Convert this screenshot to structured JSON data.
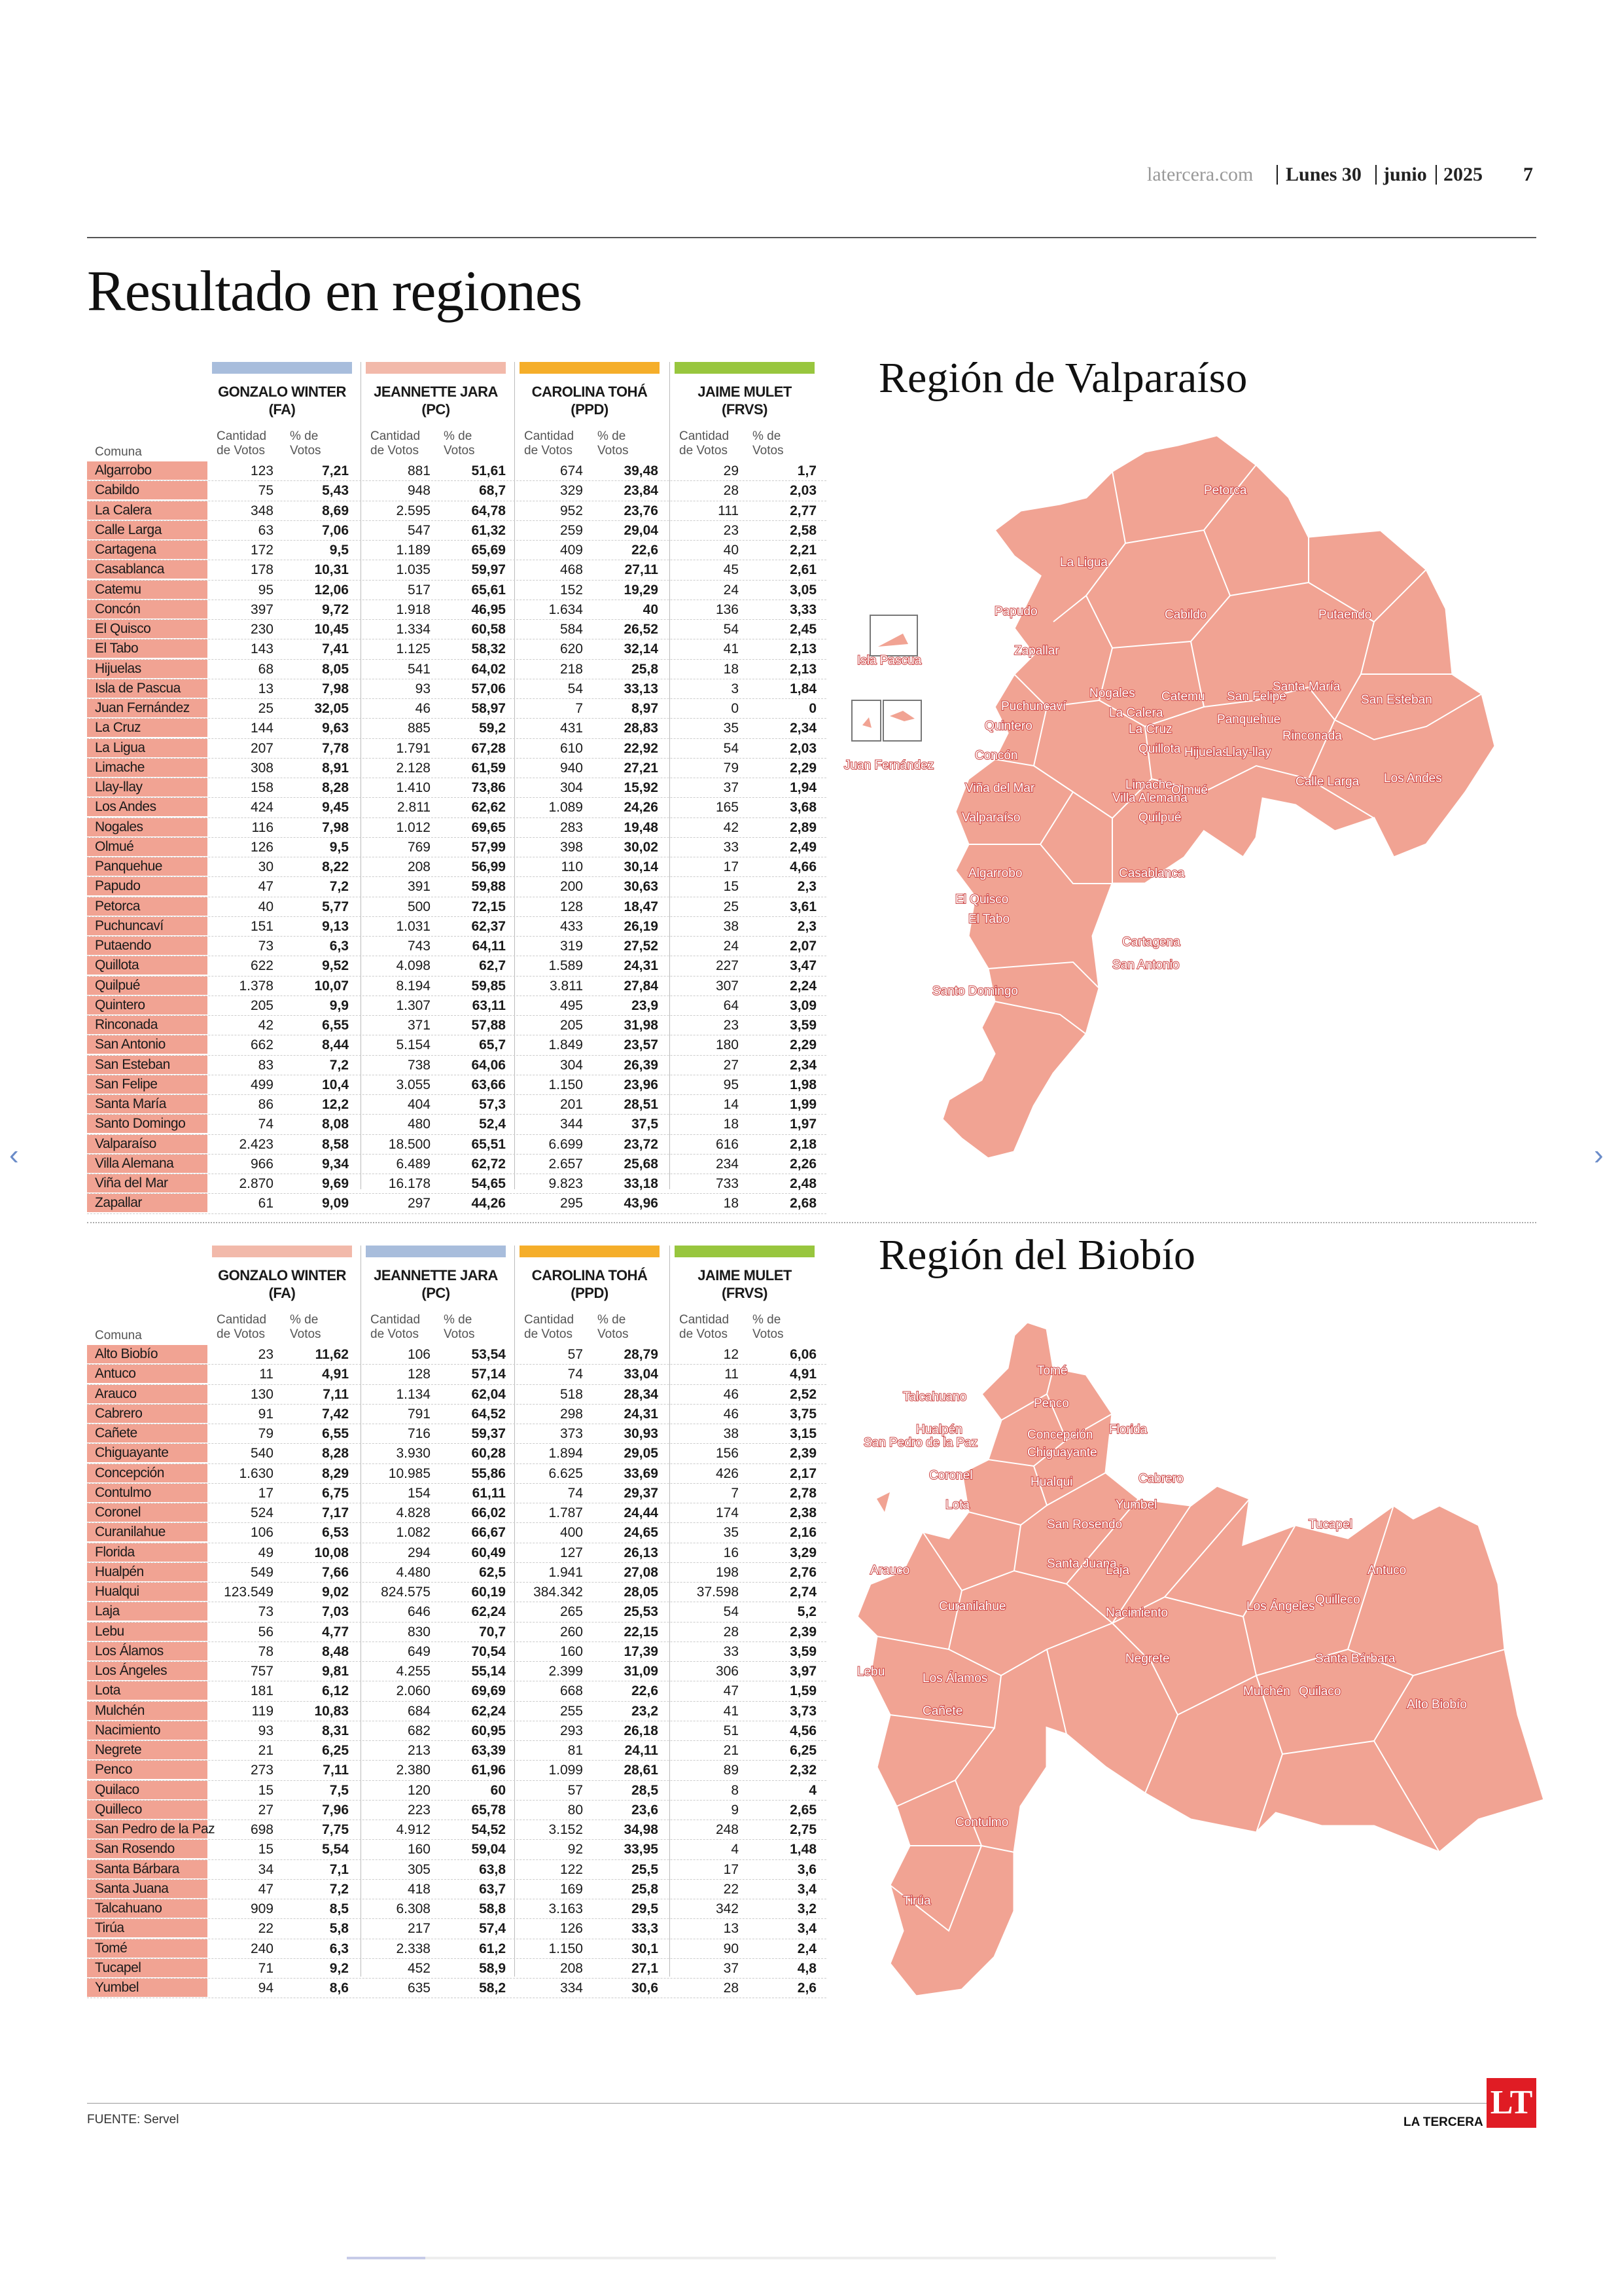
{
  "header": {
    "site": "latercera.com",
    "day": "Lunes 30",
    "month": "junio",
    "year": "2025",
    "page_number": "7"
  },
  "title": "Resultado en regiones",
  "column_labels": {
    "comuna": "Comuna",
    "cantidad_1": "Cantidad",
    "cantidad_2": "de Votos",
    "pct_1": "% de",
    "pct_2": "Votos"
  },
  "colors": {
    "region_fill": "#f1a393",
    "blue": "#a8bddc",
    "pink": "#f2b9aa",
    "orange": "#f5ae2a",
    "green": "#98c63e"
  },
  "valparaiso": {
    "map_title": "Región de Valparaíso",
    "candidates": [
      {
        "name": "GONZALO WINTER",
        "party": "(FA)",
        "color": "#a8bddc"
      },
      {
        "name": "JEANNETTE JARA",
        "party": "(PC)",
        "color": "#f2b9aa"
      },
      {
        "name": "CAROLINA TOHÁ",
        "party": "(PPD)",
        "color": "#f5ae2a"
      },
      {
        "name": "JAIME MULET",
        "party": "(FRVS)",
        "color": "#98c63e"
      }
    ],
    "rows": [
      [
        "Algarrobo",
        "123",
        "7,21",
        "881",
        "51,61",
        "674",
        "39,48",
        "29",
        "1,7"
      ],
      [
        "Cabildo",
        "75",
        "5,43",
        "948",
        "68,7",
        "329",
        "23,84",
        "28",
        "2,03"
      ],
      [
        "La Calera",
        "348",
        "8,69",
        "2.595",
        "64,78",
        "952",
        "23,76",
        "111",
        "2,77"
      ],
      [
        "Calle Larga",
        "63",
        "7,06",
        "547",
        "61,32",
        "259",
        "29,04",
        "23",
        "2,58"
      ],
      [
        "Cartagena",
        "172",
        "9,5",
        "1.189",
        "65,69",
        "409",
        "22,6",
        "40",
        "2,21"
      ],
      [
        "Casablanca",
        "178",
        "10,31",
        "1.035",
        "59,97",
        "468",
        "27,11",
        "45",
        "2,61"
      ],
      [
        "Catemu",
        "95",
        "12,06",
        "517",
        "65,61",
        "152",
        "19,29",
        "24",
        "3,05"
      ],
      [
        "Concón",
        "397",
        "9,72",
        "1.918",
        "46,95",
        "1.634",
        "40",
        "136",
        "3,33"
      ],
      [
        "El Quisco",
        "230",
        "10,45",
        "1.334",
        "60,58",
        "584",
        "26,52",
        "54",
        "2,45"
      ],
      [
        "El Tabo",
        "143",
        "7,41",
        "1.125",
        "58,32",
        "620",
        "32,14",
        "41",
        "2,13"
      ],
      [
        "Hijuelas",
        "68",
        "8,05",
        "541",
        "64,02",
        "218",
        "25,8",
        "18",
        "2,13"
      ],
      [
        "Isla de Pascua",
        "13",
        "7,98",
        "93",
        "57,06",
        "54",
        "33,13",
        "3",
        "1,84"
      ],
      [
        "Juan Fernández",
        "25",
        "32,05",
        "46",
        "58,97",
        "7",
        "8,97",
        "0",
        "0"
      ],
      [
        "La Cruz",
        "144",
        "9,63",
        "885",
        "59,2",
        "431",
        "28,83",
        "35",
        "2,34"
      ],
      [
        "La Ligua",
        "207",
        "7,78",
        "1.791",
        "67,28",
        "610",
        "22,92",
        "54",
        "2,03"
      ],
      [
        "Limache",
        "308",
        "8,91",
        "2.128",
        "61,59",
        "940",
        "27,21",
        "79",
        "2,29"
      ],
      [
        "Llay-llay",
        "158",
        "8,28",
        "1.410",
        "73,86",
        "304",
        "15,92",
        "37",
        "1,94"
      ],
      [
        "Los Andes",
        "424",
        "9,45",
        "2.811",
        "62,62",
        "1.089",
        "24,26",
        "165",
        "3,68"
      ],
      [
        "Nogales",
        "116",
        "7,98",
        "1.012",
        "69,65",
        "283",
        "19,48",
        "42",
        "2,89"
      ],
      [
        "Olmué",
        "126",
        "9,5",
        "769",
        "57,99",
        "398",
        "30,02",
        "33",
        "2,49"
      ],
      [
        "Panquehue",
        "30",
        "8,22",
        "208",
        "56,99",
        "110",
        "30,14",
        "17",
        "4,66"
      ],
      [
        "Papudo",
        "47",
        "7,2",
        "391",
        "59,88",
        "200",
        "30,63",
        "15",
        "2,3"
      ],
      [
        "Petorca",
        "40",
        "5,77",
        "500",
        "72,15",
        "128",
        "18,47",
        "25",
        "3,61"
      ],
      [
        "Puchuncaví",
        "151",
        "9,13",
        "1.031",
        "62,37",
        "433",
        "26,19",
        "38",
        "2,3"
      ],
      [
        "Putaendo",
        "73",
        "6,3",
        "743",
        "64,11",
        "319",
        "27,52",
        "24",
        "2,07"
      ],
      [
        "Quillota",
        "622",
        "9,52",
        "4.098",
        "62,7",
        "1.589",
        "24,31",
        "227",
        "3,47"
      ],
      [
        "Quilpué",
        "1.378",
        "10,07",
        "8.194",
        "59,85",
        "3.811",
        "27,84",
        "307",
        "2,24"
      ],
      [
        "Quintero",
        "205",
        "9,9",
        "1.307",
        "63,11",
        "495",
        "23,9",
        "64",
        "3,09"
      ],
      [
        "Rinconada",
        "42",
        "6,55",
        "371",
        "57,88",
        "205",
        "31,98",
        "23",
        "3,59"
      ],
      [
        "San Antonio",
        "662",
        "8,44",
        "5.154",
        "65,7",
        "1.849",
        "23,57",
        "180",
        "2,29"
      ],
      [
        "San Esteban",
        "83",
        "7,2",
        "738",
        "64,06",
        "304",
        "26,39",
        "27",
        "2,34"
      ],
      [
        "San Felipe",
        "499",
        "10,4",
        "3.055",
        "63,66",
        "1.150",
        "23,96",
        "95",
        "1,98"
      ],
      [
        "Santa María",
        "86",
        "12,2",
        "404",
        "57,3",
        "201",
        "28,51",
        "14",
        "1,99"
      ],
      [
        "Santo Domingo",
        "74",
        "8,08",
        "480",
        "52,4",
        "344",
        "37,5",
        "18",
        "1,97"
      ],
      [
        "Valparaíso",
        "2.423",
        "8,58",
        "18.500",
        "65,51",
        "6.699",
        "23,72",
        "616",
        "2,18"
      ],
      [
        "Villa Alemana",
        "966",
        "9,34",
        "6.489",
        "62,72",
        "2.657",
        "25,68",
        "234",
        "2,26"
      ],
      [
        "Viña del Mar",
        "2.870",
        "9,69",
        "16.178",
        "54,65",
        "9.823",
        "33,18",
        "733",
        "2,48"
      ],
      [
        "Zapallar",
        "61",
        "9,09",
        "297",
        "44,26",
        "295",
        "43,96",
        "18",
        "2,68"
      ]
    ],
    "map_labels": [
      "Petorca",
      "La Ligua",
      "Papudo",
      "Cabildo",
      "Putaendo",
      "Zapallar",
      "Santa María",
      "Nogales",
      "Catemu",
      "San Felipe",
      "San Esteban",
      "Puchuncaví",
      "La Calera",
      "Panquehue",
      "Quintero",
      "La Cruz",
      "Quillota",
      "Hijuelas",
      "Llay-llay",
      "Rinconada",
      "Concón",
      "Calle Larga",
      "Los Andes",
      "Viña del Mar",
      "Limache",
      "Olmué",
      "Villa Alemana",
      "Valparaíso",
      "Quilpué",
      "Algarrobo",
      "Casablanca",
      "El Quisco",
      "El Tabo",
      "Cartagena",
      "San Antonio",
      "Santo Domingo",
      "Isla Pascua",
      "Juan Fernández"
    ]
  },
  "biobio": {
    "map_title": "Región del Biobío",
    "candidates": [
      {
        "name": "GONZALO WINTER",
        "party": "(FA)",
        "color": "#f2b9aa"
      },
      {
        "name": "JEANNETTE JARA",
        "party": "(PC)",
        "color": "#a8bddc"
      },
      {
        "name": "CAROLINA TOHÁ",
        "party": "(PPD)",
        "color": "#f5ae2a"
      },
      {
        "name": "JAIME MULET",
        "party": "(FRVS)",
        "color": "#98c63e"
      }
    ],
    "rows": [
      [
        "Alto Biobío",
        "23",
        "11,62",
        "106",
        "53,54",
        "57",
        "28,79",
        "12",
        "6,06"
      ],
      [
        "Antuco",
        "11",
        "4,91",
        "128",
        "57,14",
        "74",
        "33,04",
        "11",
        "4,91"
      ],
      [
        "Arauco",
        "130",
        "7,11",
        "1.134",
        "62,04",
        "518",
        "28,34",
        "46",
        "2,52"
      ],
      [
        "Cabrero",
        "91",
        "7,42",
        "791",
        "64,52",
        "298",
        "24,31",
        "46",
        "3,75"
      ],
      [
        "Cañete",
        "79",
        "6,55",
        "716",
        "59,37",
        "373",
        "30,93",
        "38",
        "3,15"
      ],
      [
        "Chiguayante",
        "540",
        "8,28",
        "3.930",
        "60,28",
        "1.894",
        "29,05",
        "156",
        "2,39"
      ],
      [
        "Concepción",
        "1.630",
        "8,29",
        "10.985",
        "55,86",
        "6.625",
        "33,69",
        "426",
        "2,17"
      ],
      [
        "Contulmo",
        "17",
        "6,75",
        "154",
        "61,11",
        "74",
        "29,37",
        "7",
        "2,78"
      ],
      [
        "Coronel",
        "524",
        "7,17",
        "4.828",
        "66,02",
        "1.787",
        "24,44",
        "174",
        "2,38"
      ],
      [
        "Curanilahue",
        "106",
        "6,53",
        "1.082",
        "66,67",
        "400",
        "24,65",
        "35",
        "2,16"
      ],
      [
        "Florida",
        "49",
        "10,08",
        "294",
        "60,49",
        "127",
        "26,13",
        "16",
        "3,29"
      ],
      [
        "Hualpén",
        "549",
        "7,66",
        "4.480",
        "62,5",
        "1.941",
        "27,08",
        "198",
        "2,76"
      ],
      [
        "Hualqui",
        "123.549",
        "9,02",
        "824.575",
        "60,19",
        "384.342",
        "28,05",
        "37.598",
        "2,74"
      ],
      [
        "Laja",
        "73",
        "7,03",
        "646",
        "62,24",
        "265",
        "25,53",
        "54",
        "5,2"
      ],
      [
        "Lebu",
        "56",
        "4,77",
        "830",
        "70,7",
        "260",
        "22,15",
        "28",
        "2,39"
      ],
      [
        "Los Álamos",
        "78",
        "8,48",
        "649",
        "70,54",
        "160",
        "17,39",
        "33",
        "3,59"
      ],
      [
        "Los Ángeles",
        "757",
        "9,81",
        "4.255",
        "55,14",
        "2.399",
        "31,09",
        "306",
        "3,97"
      ],
      [
        "Lota",
        "181",
        "6,12",
        "2.060",
        "69,69",
        "668",
        "22,6",
        "47",
        "1,59"
      ],
      [
        "Mulchén",
        "119",
        "10,83",
        "684",
        "62,24",
        "255",
        "23,2",
        "41",
        "3,73"
      ],
      [
        "Nacimiento",
        "93",
        "8,31",
        "682",
        "60,95",
        "293",
        "26,18",
        "51",
        "4,56"
      ],
      [
        "Negrete",
        "21",
        "6,25",
        "213",
        "63,39",
        "81",
        "24,11",
        "21",
        "6,25"
      ],
      [
        "Penco",
        "273",
        "7,11",
        "2.380",
        "61,96",
        "1.099",
        "28,61",
        "89",
        "2,32"
      ],
      [
        "Quilaco",
        "15",
        "7,5",
        "120",
        "60",
        "57",
        "28,5",
        "8",
        "4"
      ],
      [
        "Quilleco",
        "27",
        "7,96",
        "223",
        "65,78",
        "80",
        "23,6",
        "9",
        "2,65"
      ],
      [
        "San Pedro de la Paz",
        "698",
        "7,75",
        "4.912",
        "54,52",
        "3.152",
        "34,98",
        "248",
        "2,75"
      ],
      [
        "San Rosendo",
        "15",
        "5,54",
        "160",
        "59,04",
        "92",
        "33,95",
        "4",
        "1,48"
      ],
      [
        "Santa Bárbara",
        "34",
        "7,1",
        "305",
        "63,8",
        "122",
        "25,5",
        "17",
        "3,6"
      ],
      [
        "Santa Juana",
        "47",
        "7,2",
        "418",
        "63,7",
        "169",
        "25,8",
        "22",
        "3,4"
      ],
      [
        "Talcahuano",
        "909",
        "8,5",
        "6.308",
        "58,8",
        "3.163",
        "29,5",
        "342",
        "3,2"
      ],
      [
        "Tirúa",
        "22",
        "5,8",
        "217",
        "57,4",
        "126",
        "33,3",
        "13",
        "3,4"
      ],
      [
        "Tomé",
        "240",
        "6,3",
        "2.338",
        "61,2",
        "1.150",
        "30,1",
        "90",
        "2,4"
      ],
      [
        "Tucapel",
        "71",
        "9,2",
        "452",
        "58,9",
        "208",
        "27,1",
        "37",
        "4,8"
      ],
      [
        "Yumbel",
        "94",
        "8,6",
        "635",
        "58,2",
        "334",
        "30,6",
        "28",
        "2,6"
      ]
    ],
    "map_labels": [
      "Tomé",
      "Talcahuano",
      "Penco",
      "Hualpén",
      "Concepción",
      "Florida",
      "San Pedro de la Paz",
      "Chiguayante",
      "Coronel",
      "Hualqui",
      "Cabrero",
      "Lota",
      "Yumbel",
      "San Rosendo",
      "Tucapel",
      "Arauco",
      "Santa Juana",
      "Laja",
      "Antuco",
      "Curanilahue",
      "Nacimiento",
      "Los Ángeles",
      "Quilleco",
      "Negrete",
      "Santa Bárbara",
      "Lebu",
      "Los Álamos",
      "Mulchén",
      "Quilaco",
      "Alto Biobío",
      "Cañete",
      "Contulmo",
      "Tirúa"
    ]
  },
  "footer": {
    "source": "FUENTE: Servel",
    "brand": "LA TERCERA",
    "logo": "LT"
  }
}
